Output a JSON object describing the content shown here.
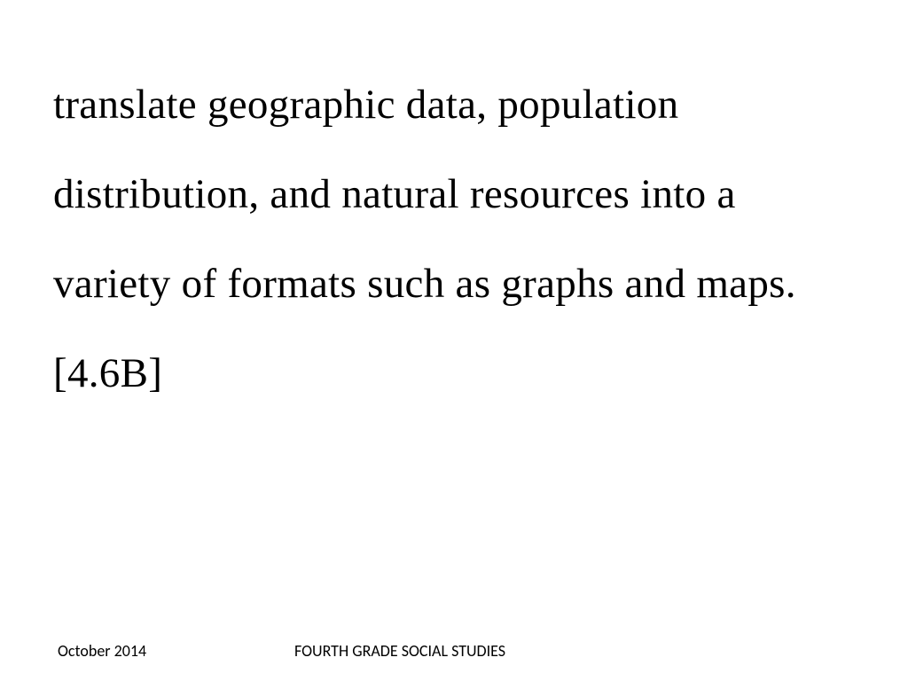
{
  "slide": {
    "main_text": "translate geographic data, population distribution, and natural resources into a variety of formats such as graphs and maps.[4.6B]",
    "main_text_font_family": "Comic Sans MS",
    "main_text_font_size": 47,
    "main_text_color": "#000000",
    "background_color": "#ffffff"
  },
  "footer": {
    "date": "October 2014",
    "title": "FOURTH GRADE SOCIAL STUDIES",
    "font_family": "Calibri",
    "font_size": 18,
    "text_color": "#000000"
  }
}
